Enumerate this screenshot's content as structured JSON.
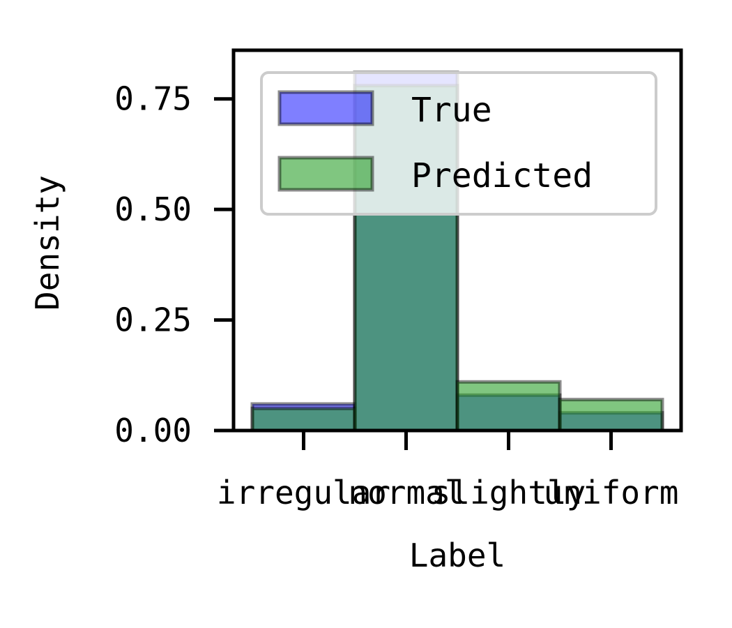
{
  "chart_data": {
    "type": "bar",
    "categories": [
      "irregular",
      "normal",
      "slightly",
      "uniform"
    ],
    "series": [
      {
        "name": "True",
        "values": [
          0.06,
          0.81,
          0.08,
          0.04
        ],
        "color": "#0000ff",
        "alpha": 0.5
      },
      {
        "name": "Predicted",
        "values": [
          0.05,
          0.78,
          0.11,
          0.07
        ],
        "color": "#2ca02c",
        "alpha": 0.6
      }
    ],
    "xlabel": "Label",
    "ylabel": "Density",
    "ylim": [
      0,
      0.86
    ],
    "yticks": [
      0,
      0.25,
      0.5,
      0.75
    ],
    "ytick_labels": [
      "0.00",
      "0.25",
      "0.50",
      "0.75"
    ],
    "grid": false,
    "legend_position": "top-right",
    "overlap": "overlaid"
  }
}
